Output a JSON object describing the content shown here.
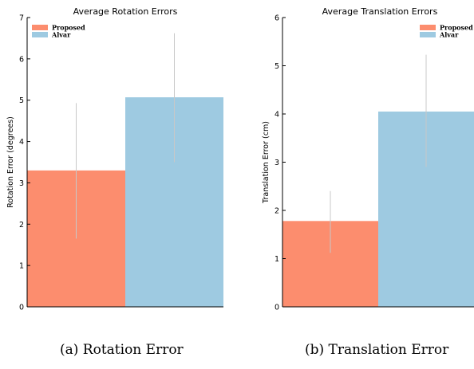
{
  "chart_data": [
    {
      "type": "bar",
      "title": "Average Rotation Errors",
      "xlabel": "",
      "ylabel": "Rotation Error (degrees)",
      "ylim": [
        0,
        7
      ],
      "yticks": [
        0,
        1,
        2,
        3,
        4,
        5,
        6,
        7
      ],
      "legend_position": "top-left",
      "series": [
        {
          "name": "Proposed",
          "value": 3.3,
          "error": [
            1.65,
            4.93
          ],
          "color": "#fc8d6e"
        },
        {
          "name": "Alvar",
          "value": 5.07,
          "error": [
            3.5,
            6.62
          ],
          "color": "#9ecae1"
        }
      ],
      "caption": "(a) Rotation Error"
    },
    {
      "type": "bar",
      "title": "Average Translation Errors",
      "xlabel": "",
      "ylabel": "Translation Error (cm)",
      "ylim": [
        0,
        6
      ],
      "yticks": [
        0,
        1,
        2,
        3,
        4,
        5,
        6
      ],
      "legend_position": "top-right",
      "series": [
        {
          "name": "Proposed",
          "value": 1.78,
          "error": [
            1.12,
            2.4
          ],
          "color": "#fc8d6e"
        },
        {
          "name": "Alvar",
          "value": 4.05,
          "error": [
            2.9,
            5.23
          ],
          "color": "#9ecae1"
        }
      ],
      "caption": "(b) Translation Error"
    }
  ],
  "style": {
    "axis_color": "#000000",
    "error_bar_color": "#c8c8c8"
  }
}
